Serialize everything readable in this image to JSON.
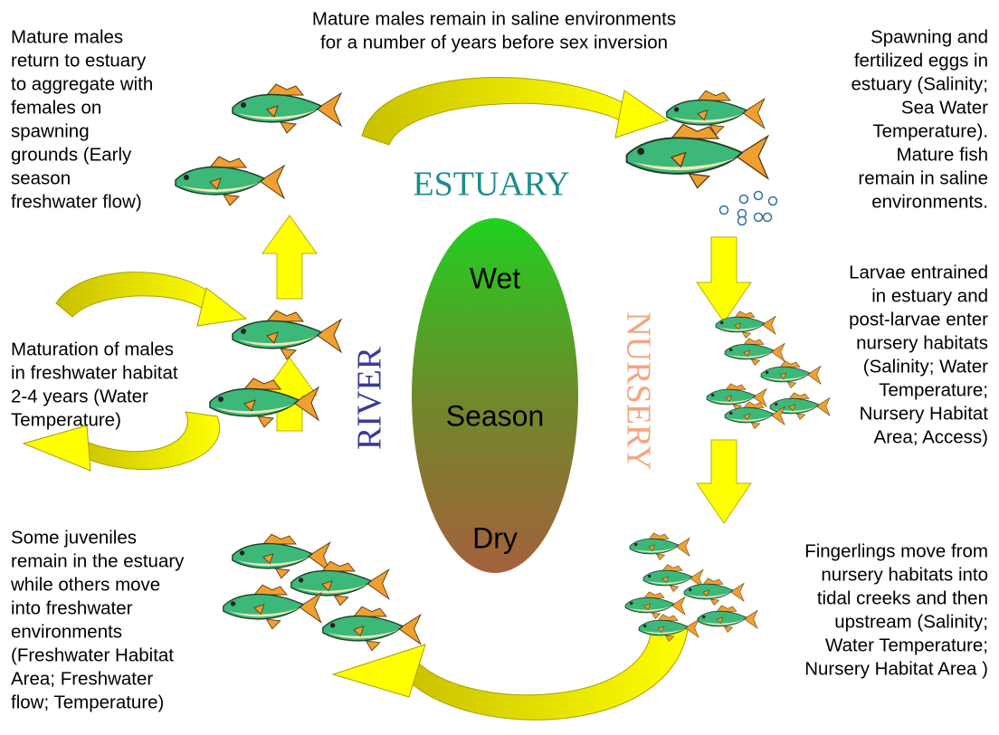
{
  "top_caption": [
    "Mature males remain in saline environments",
    "for a number of years before sex inversion"
  ],
  "captions": {
    "left_top": [
      "Mature males",
      "return to estuary",
      "to aggregate with",
      "females on",
      "spawning",
      "grounds (Early",
      "season",
      "freshwater flow)"
    ],
    "left_middle": [
      "Maturation of males",
      "in freshwater habitat",
      "2-4 years (Water",
      "Temperature)"
    ],
    "left_bottom": [
      "Some juveniles",
      "remain in the estuary",
      "while others move",
      "into freshwater",
      "environments",
      "(Freshwater Habitat",
      "Area; Freshwater",
      "flow; Temperature)"
    ],
    "right_top": [
      "Spawning and",
      "fertilized eggs in",
      "estuary (Salinity;",
      "Sea Water",
      "Temperature).",
      "Mature fish",
      "remain in saline",
      "environments."
    ],
    "right_middle": [
      "Larvae entrained",
      "in estuary and",
      "post-larvae enter",
      "nursery habitats",
      "(Salinity; Water",
      "Temperature;",
      "Nursery Habitat",
      "Area; Access)"
    ],
    "right_bottom": [
      "Fingerlings move from",
      "nursery habitats into",
      "tidal creeks and then",
      "upstream (Salinity;",
      "Water Temperature;",
      "Nursery Habitat Area )"
    ]
  },
  "zones": {
    "estuary": "ESTUARY",
    "river": "RIVER",
    "nursery": "NURSERY"
  },
  "season": {
    "wet": "Wet",
    "season": "Season",
    "dry": "Dry"
  }
}
